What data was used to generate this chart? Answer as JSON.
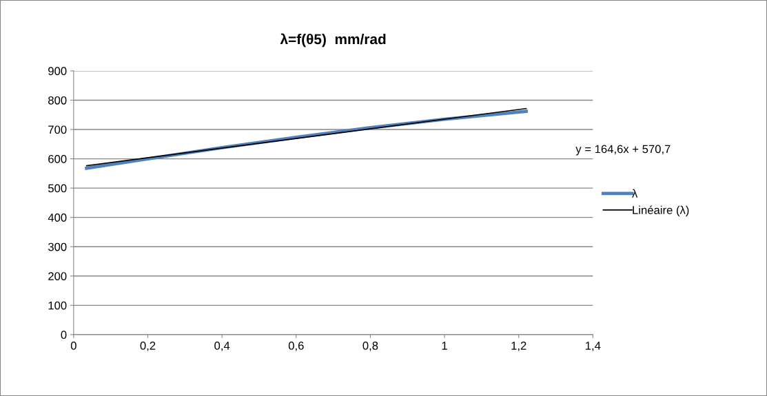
{
  "chart_data": {
    "type": "line",
    "title": "λ=f(θ5)  mm/rad",
    "series": [
      {
        "name": "λ",
        "color": "#4f81bd",
        "x": [
          0.035,
          0.2,
          0.4,
          0.6,
          0.8,
          1.0,
          1.22
        ],
        "values": [
          568,
          600,
          638,
          673,
          706,
          735,
          762
        ]
      },
      {
        "name": "Linéaire (λ)",
        "color": "#000000",
        "type": "line",
        "x": [
          0.035,
          1.22
        ],
        "values": [
          576.5,
          771.5
        ]
      }
    ],
    "xlim": [
      0,
      1.4
    ],
    "xticks": [
      0,
      {
        "value": 0.2,
        "label": "0,2"
      },
      {
        "value": 0.4,
        "label": "0,4"
      },
      {
        "value": 0.6,
        "label": "0,6"
      },
      {
        "value": 0.8,
        "label": "0,8"
      },
      1,
      {
        "value": 1.2,
        "label": "1,2"
      },
      {
        "value": 1.4,
        "label": "1,4"
      }
    ],
    "ylim": [
      0,
      900
    ],
    "yticks": [
      0,
      100,
      200,
      300,
      400,
      500,
      600,
      700,
      800,
      900
    ],
    "annotations": [
      "y = 164,6x + 570,7"
    ],
    "grid": "y",
    "legend": "right"
  }
}
